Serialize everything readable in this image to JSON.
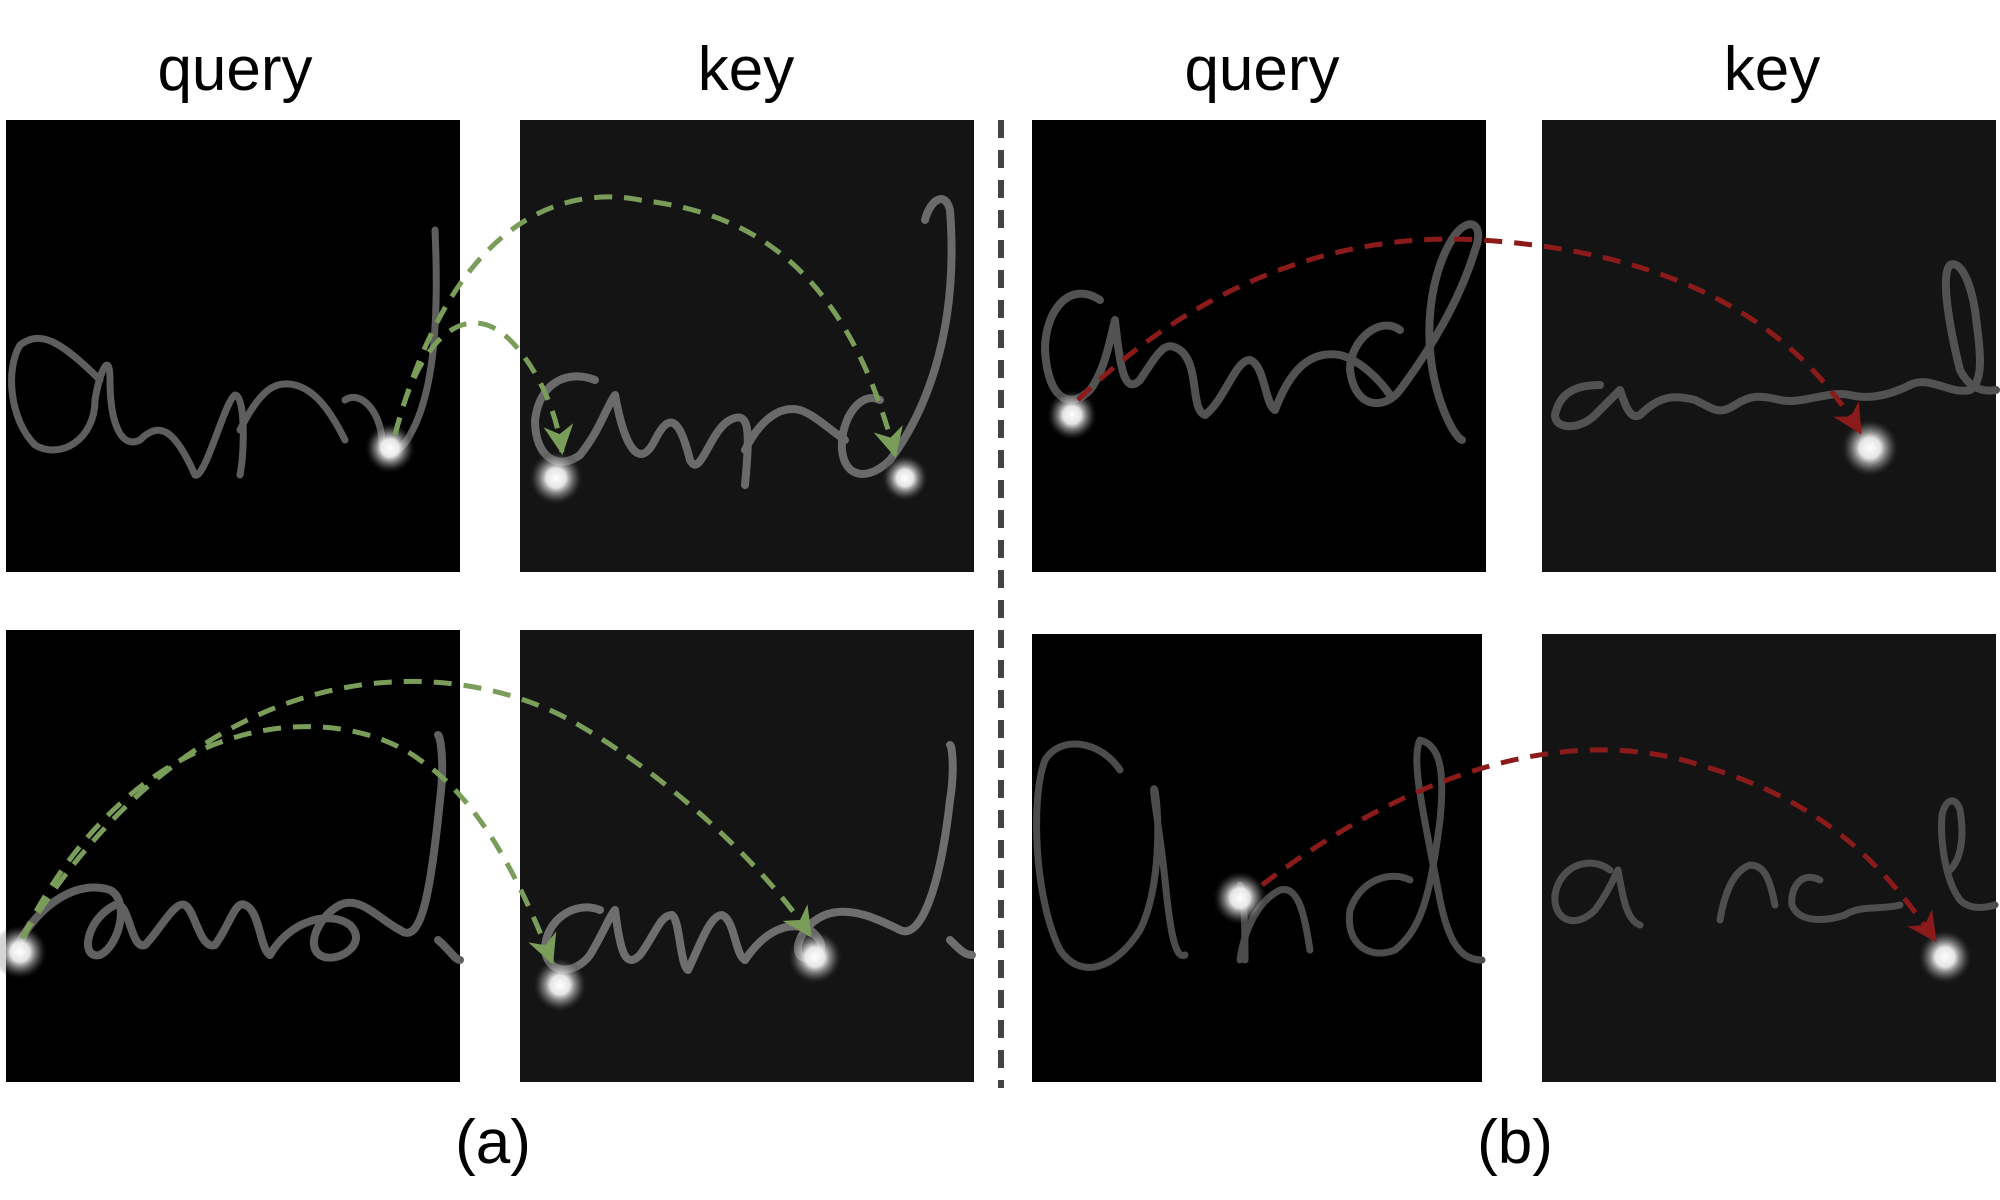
{
  "headers": {
    "a_query": "query",
    "a_key": "key",
    "b_query": "query",
    "b_key": "key"
  },
  "captions": {
    "a": "(a)",
    "b": "(b)"
  },
  "colors": {
    "match_arrow": "#7a9e5a",
    "mismatch_arrow": "#8b1a1a",
    "query_panel_bg": "#000000",
    "key_panel_bg": "#141414",
    "stroke": "#5e5e5e",
    "divider": "#444444"
  }
}
